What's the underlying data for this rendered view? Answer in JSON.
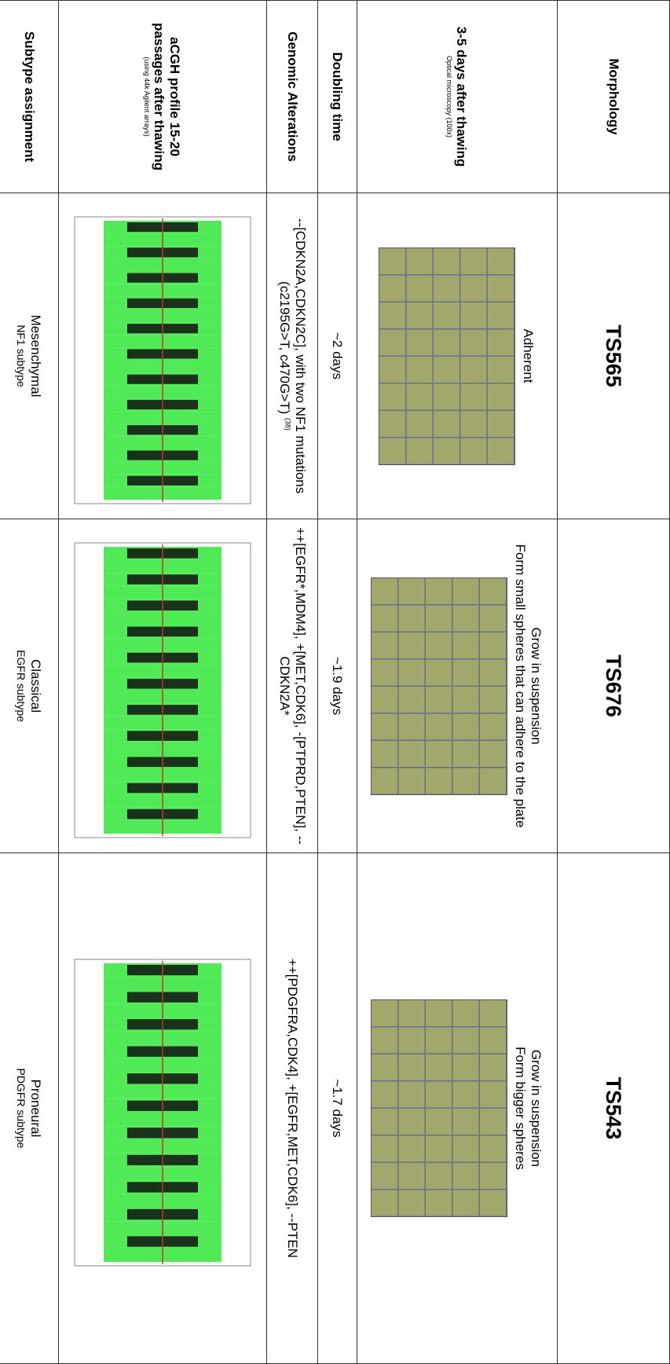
{
  "table": {
    "header": [
      "Morphology",
      "TS565",
      "TS676",
      "TS543"
    ],
    "morphology_label": [
      "3-5 days after thawing",
      "Optical microscopy (100x)"
    ],
    "morphology": [
      [
        "Adherent"
      ],
      [
        "Grow in suspension",
        "Form small spheres that can adhere to the plate"
      ],
      [
        "Grow in suspension",
        "Form bigger spheres"
      ]
    ],
    "doubling_label": "Doubling time",
    "doubling": [
      "~2 days",
      "~1.9 days",
      "~1.7 days"
    ],
    "genomic_label": "Genomic Alterations",
    "genomic": [
      "--[CDKN2A,CDKN2C], with two NF1 mutations (c2195G>T, c470G>T)",
      "++[EGFR*,MDM4], +[MET,CDK6], -[PTPRD,PTEN], --CDKN2A*",
      "++[PDGFRA,CDK4], +[EGFR,MET,CDK6], --PTEN"
    ],
    "genomic_ref": "(38)",
    "acgh_label": [
      "aCGH profile 15-20",
      "passages after thawing",
      "(using 44k Agilent arrays)"
    ],
    "subtype_label": "Subtype assignment",
    "subtype": [
      [
        "Mesenchymal",
        "NF1 subtype"
      ],
      [
        "Classical",
        "EGFR subtype"
      ],
      [
        "Proneural",
        "PDGFR subtype"
      ]
    ]
  }
}
